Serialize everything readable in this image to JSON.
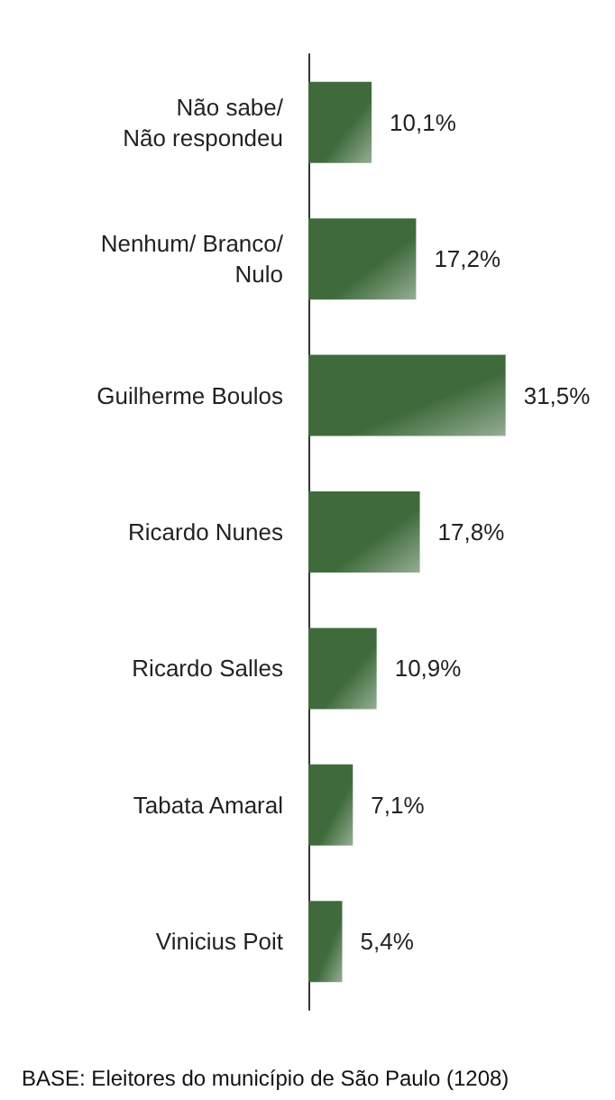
{
  "chart_data": {
    "type": "bar",
    "orientation": "horizontal",
    "categories": [
      "Não sabe/\nNão respondeu",
      "Nenhum/ Branco/\nNulo",
      "Guilherme Boulos",
      "Ricardo Nunes",
      "Ricardo Salles",
      "Tabata Amaral",
      "Vinicius Poit"
    ],
    "values": [
      10.1,
      17.2,
      31.5,
      17.8,
      10.9,
      7.1,
      5.4
    ],
    "value_labels": [
      "10,1%",
      "17,2%",
      "31,5%",
      "17,8%",
      "10,9%",
      "7,1%",
      "5,4%"
    ],
    "color": "#3f6b3c",
    "annotations": [
      "BASE: Eleitores do município de São Paulo (1208)"
    ]
  }
}
